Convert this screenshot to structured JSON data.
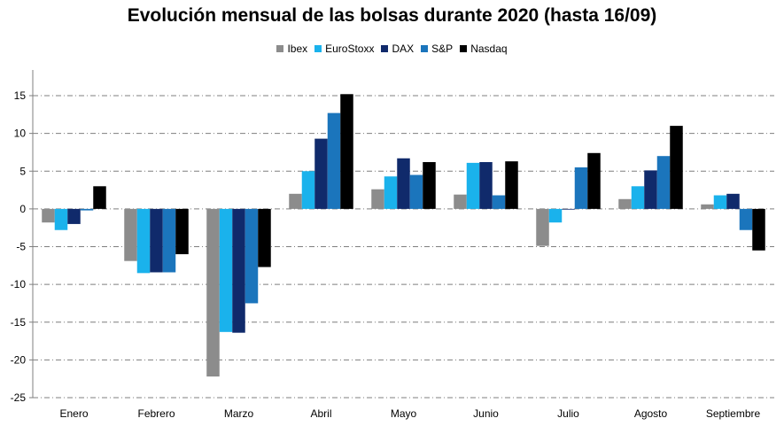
{
  "chart_data": {
    "type": "bar",
    "title": "Evolución mensual de las bolsas durante 2020 (hasta 16/09)",
    "categories": [
      "Enero",
      "Febrero",
      "Marzo",
      "Abril",
      "Mayo",
      "Junio",
      "Julio",
      "Agosto",
      "Septiembre"
    ],
    "series": [
      {
        "name": "Ibex",
        "color": "#8c8c8c",
        "values": [
          -1.8,
          -6.9,
          -22.2,
          2.0,
          2.6,
          1.9,
          -4.9,
          1.3,
          0.6
        ]
      },
      {
        "name": "EuroStoxx",
        "color": "#1ab2ec",
        "values": [
          -2.8,
          -8.5,
          -16.3,
          5.0,
          4.3,
          6.1,
          -1.8,
          3.0,
          1.8
        ]
      },
      {
        "name": "DAX",
        "color": "#102a6b",
        "values": [
          -2.0,
          -8.4,
          -16.4,
          9.3,
          6.7,
          6.2,
          0.0,
          5.1,
          2.0
        ]
      },
      {
        "name": "S&P",
        "color": "#1b75bc",
        "values": [
          -0.2,
          -8.4,
          -12.5,
          12.7,
          4.5,
          1.8,
          5.5,
          7.0,
          -2.8
        ]
      },
      {
        "name": "Nasdaq",
        "color": "#000000",
        "values": [
          3.0,
          -6.0,
          -7.7,
          15.2,
          6.2,
          6.3,
          7.4,
          11.0,
          -5.5
        ]
      }
    ],
    "ylim": [
      -25,
      15
    ],
    "yticks": [
      -25,
      -20,
      -15,
      -10,
      -5,
      0,
      5,
      10,
      15
    ],
    "grid": true,
    "legend": "top-center"
  }
}
